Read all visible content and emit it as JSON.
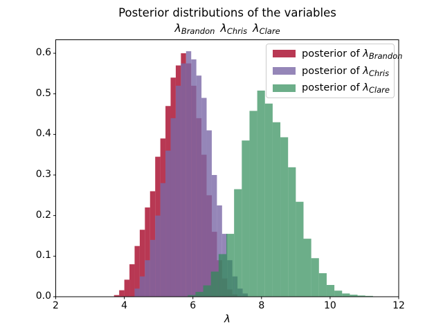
{
  "figure": {
    "title": "Posterior distributions of the variables",
    "subtitle_vars": [
      {
        "symbol": "λ",
        "subscript": "Brandon"
      },
      {
        "symbol": "λ",
        "subscript": "Chris"
      },
      {
        "symbol": "λ",
        "subscript": "Clare"
      }
    ],
    "xlabel": "λ",
    "background": "#ffffff",
    "spine_color": "#000000"
  },
  "legend": {
    "entries": [
      {
        "prefix": "posterior of ",
        "symbol": "λ",
        "subscript": "Brandon",
        "color": "#A60628",
        "opacity": 0.8
      },
      {
        "prefix": "posterior of ",
        "symbol": "λ",
        "subscript": "Chris",
        "color": "#7A68A6",
        "opacity": 0.8
      },
      {
        "prefix": "posterior of ",
        "symbol": "λ",
        "subscript": "Clare",
        "color": "#2E8B57",
        "opacity": 0.7
      }
    ]
  },
  "chart_data": {
    "type": "bar",
    "subtype": "histogram-stepfilled",
    "title": "Posterior distributions of the variables",
    "subtitle": "λ_Brandon λ_Chris λ_Clare",
    "xlabel": "λ",
    "ylabel": "",
    "x_range": [
      2,
      12
    ],
    "y_range": [
      0,
      0.634
    ],
    "grid": false,
    "legend_position": "upper right",
    "x_ticks": [
      {
        "label": "2",
        "value": 2
      },
      {
        "label": "4",
        "value": 4
      },
      {
        "label": "6",
        "value": 6
      },
      {
        "label": "8",
        "value": 8
      },
      {
        "label": "10",
        "value": 10
      },
      {
        "label": "12",
        "value": 12
      }
    ],
    "y_ticks": [
      {
        "label": "0.0",
        "value": 0.0
      },
      {
        "label": "0.1",
        "value": 0.1
      },
      {
        "label": "0.2",
        "value": 0.2
      },
      {
        "label": "0.3",
        "value": 0.3
      },
      {
        "label": "0.4",
        "value": 0.4
      },
      {
        "label": "0.5",
        "value": 0.5
      },
      {
        "label": "0.6",
        "value": 0.6
      }
    ],
    "series": [
      {
        "name": "posterior of λ_Brandon",
        "color": "#A60628",
        "opacity": 0.8,
        "bin_start": 3.7,
        "bin_width": 0.15,
        "heights": [
          0.004,
          0.016,
          0.042,
          0.08,
          0.125,
          0.165,
          0.22,
          0.26,
          0.345,
          0.39,
          0.47,
          0.54,
          0.57,
          0.6,
          0.575,
          0.52,
          0.44,
          0.35,
          0.25,
          0.16,
          0.09,
          0.045,
          0.018,
          0.006
        ]
      },
      {
        "name": "posterior of λ_Chris",
        "color": "#7A68A6",
        "opacity": 0.8,
        "bin_start": 4.3,
        "bin_width": 0.15,
        "heights": [
          0.02,
          0.05,
          0.09,
          0.14,
          0.2,
          0.28,
          0.36,
          0.44,
          0.52,
          0.575,
          0.605,
          0.585,
          0.545,
          0.49,
          0.41,
          0.3,
          0.225,
          0.155,
          0.09,
          0.05,
          0.02,
          0.008
        ]
      },
      {
        "name": "posterior of λ_Clare",
        "color": "#2E8B57",
        "opacity": 0.7,
        "bin_start": 5.85,
        "bin_width": 0.225,
        "heights": [
          0.004,
          0.012,
          0.028,
          0.062,
          0.105,
          0.155,
          0.265,
          0.385,
          0.458,
          0.508,
          0.476,
          0.43,
          0.393,
          0.319,
          0.234,
          0.143,
          0.095,
          0.058,
          0.029,
          0.015,
          0.008,
          0.005,
          0.003,
          0.002
        ]
      }
    ]
  }
}
